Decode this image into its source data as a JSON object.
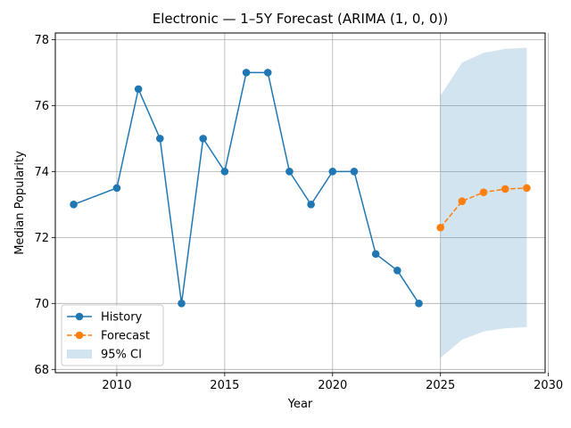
{
  "chart_data": {
    "type": "line",
    "title": "Electronic — 1–5Y Forecast (ARIMA (1, 0, 0))",
    "xlabel": "Year",
    "ylabel": "Median Popularity",
    "xlim": [
      2007.15,
      2029.85
    ],
    "ylim": [
      67.9,
      78.2
    ],
    "xticks": [
      2010,
      2015,
      2020,
      2025,
      2030
    ],
    "yticks": [
      68,
      70,
      72,
      74,
      76,
      78
    ],
    "grid": true,
    "legend_position": "lower-left",
    "series": [
      {
        "name": "History",
        "color": "#1f77b4",
        "style": "solid",
        "marker": "circle",
        "x": [
          2008,
          2010,
          2011,
          2012,
          2013,
          2014,
          2015,
          2016,
          2017,
          2018,
          2019,
          2020,
          2021,
          2022,
          2023,
          2024
        ],
        "y": [
          73.0,
          73.5,
          76.5,
          75.0,
          70.0,
          75.0,
          74.0,
          77.0,
          77.0,
          74.0,
          73.0,
          74.0,
          74.0,
          71.5,
          71.0,
          70.0
        ]
      },
      {
        "name": "Forecast",
        "color": "#ff7f0e",
        "style": "dashed",
        "marker": "circle",
        "x": [
          2025,
          2026,
          2027,
          2028,
          2029
        ],
        "y": [
          72.3,
          73.1,
          73.37,
          73.47,
          73.5
        ]
      }
    ],
    "confidence_band": {
      "name": "95% CI",
      "color": "#1f77b4",
      "x": [
        2025,
        2026,
        2027,
        2028,
        2029
      ],
      "lower": [
        68.35,
        68.9,
        69.15,
        69.25,
        69.28
      ],
      "upper": [
        76.3,
        77.3,
        77.6,
        77.72,
        77.75
      ]
    }
  }
}
